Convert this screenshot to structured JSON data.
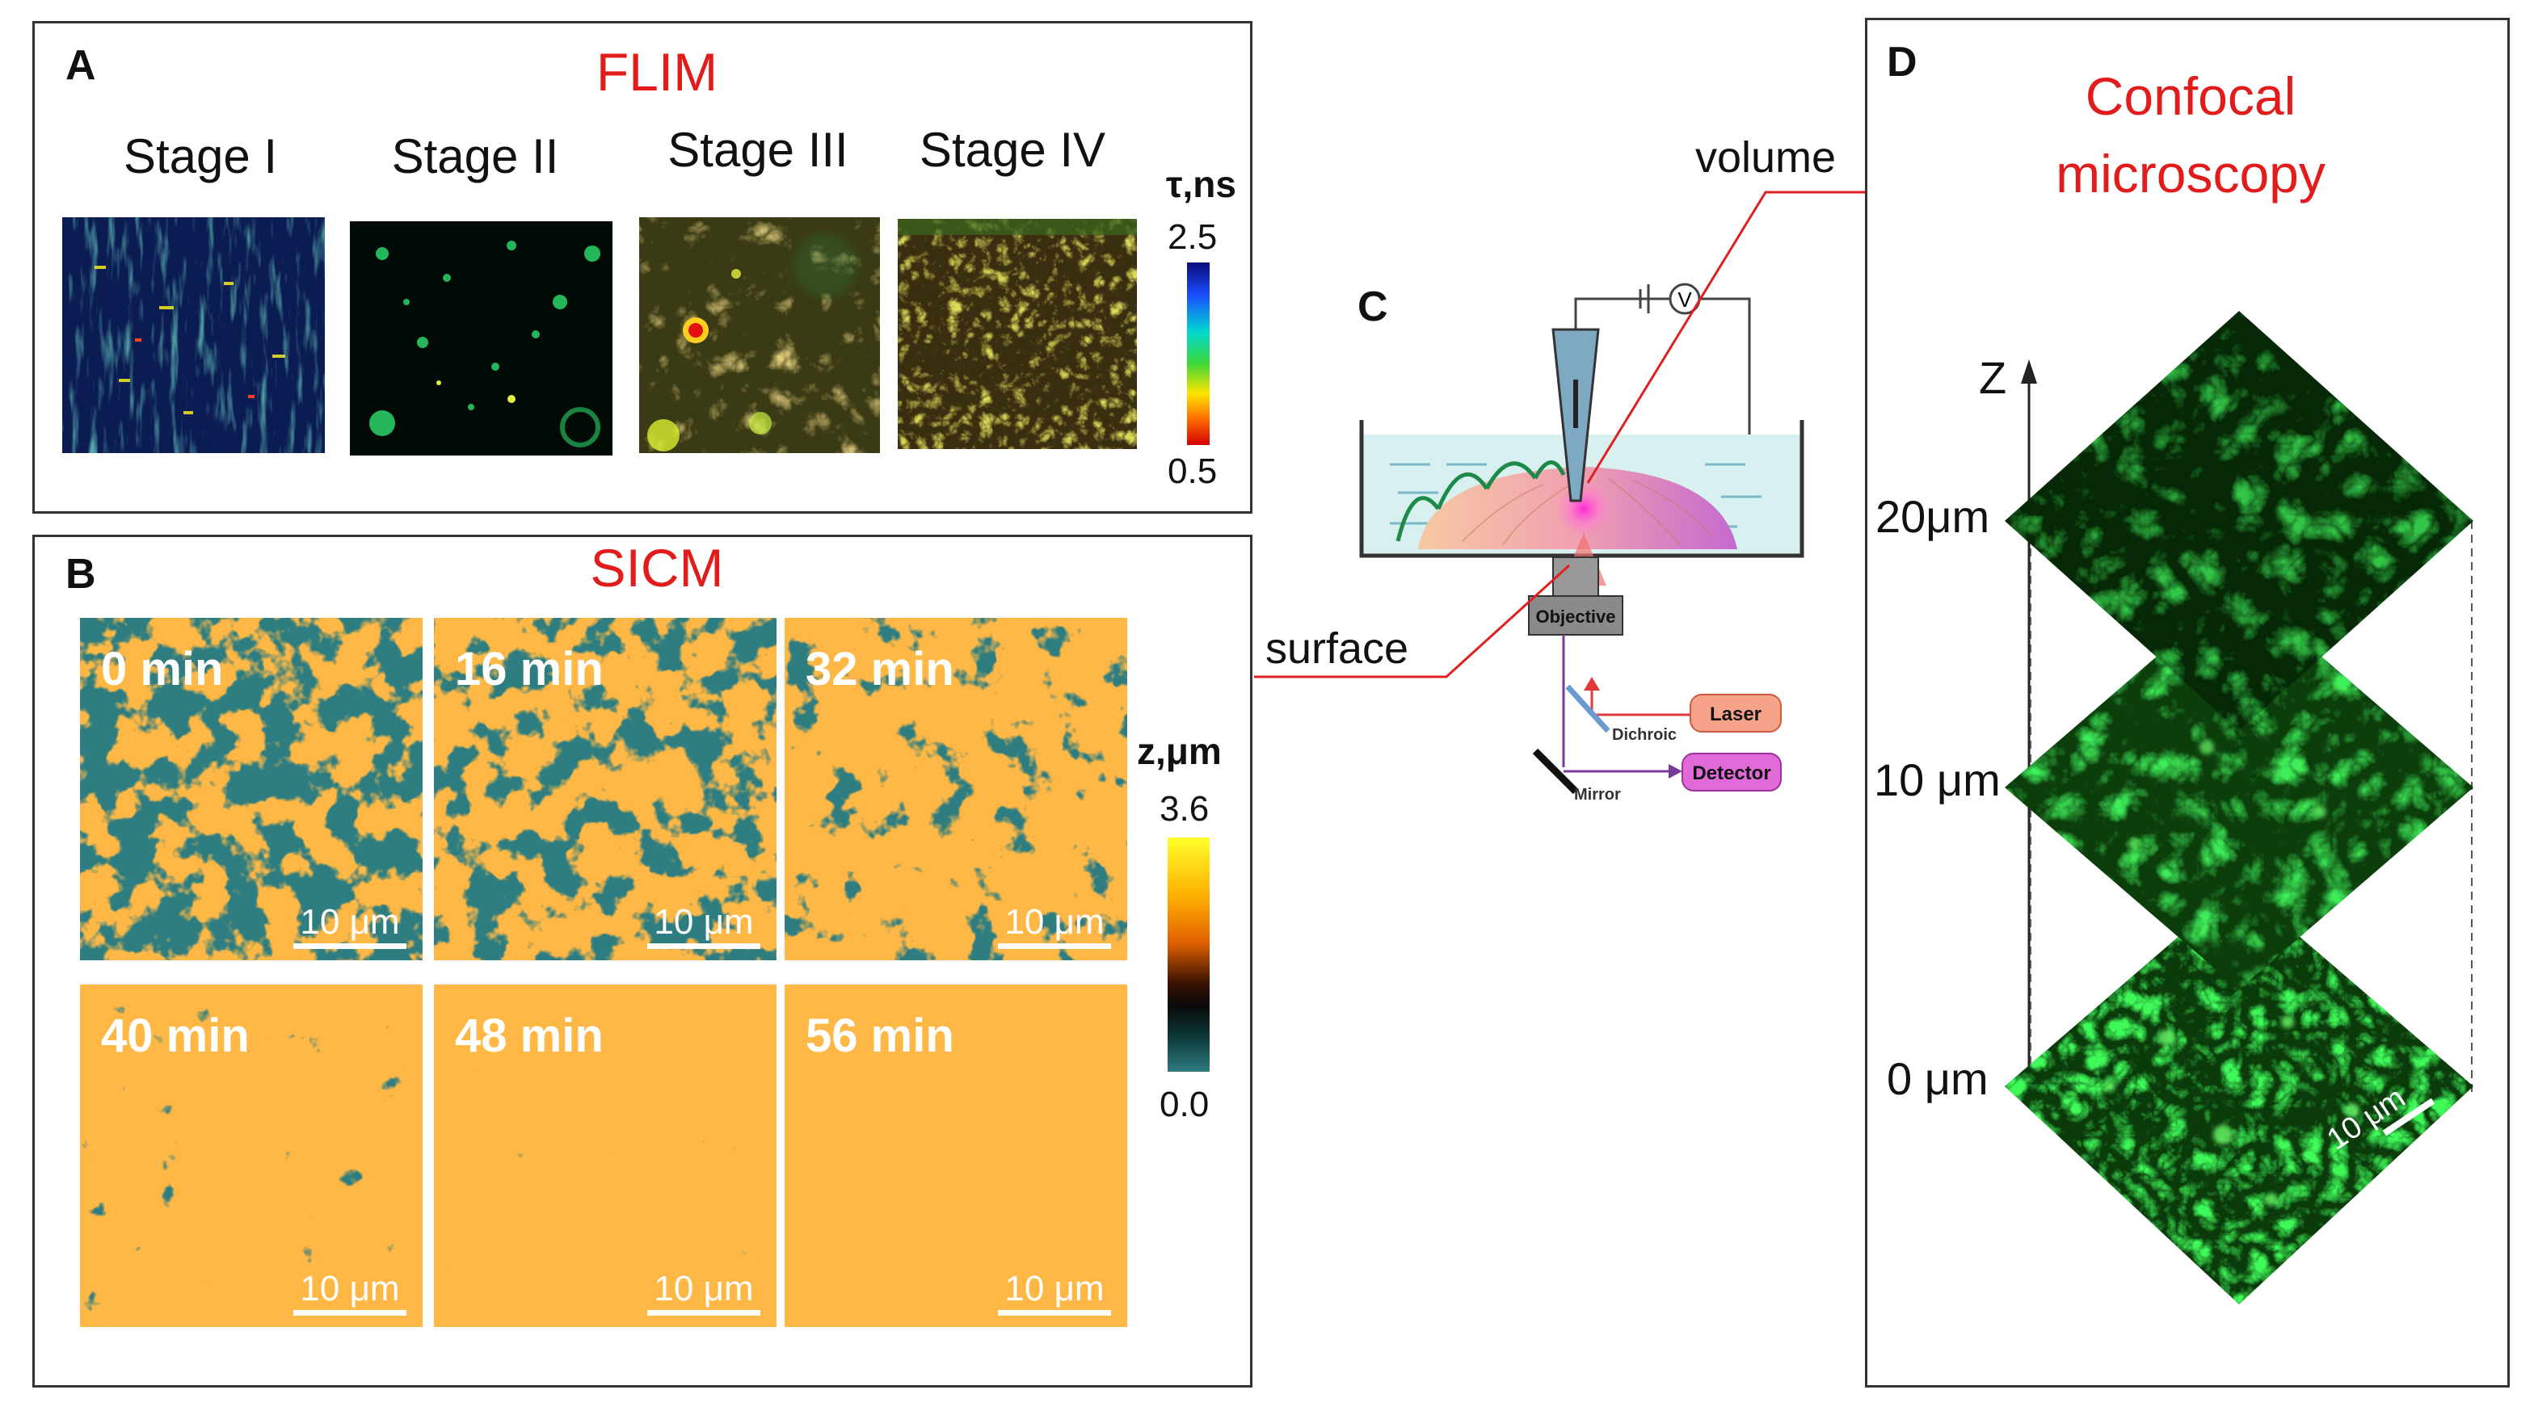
{
  "panel_a": {
    "letter": "A",
    "title": "FLIM",
    "stages": [
      "Stage I",
      "Stage II",
      "Stage III",
      "Stage IV"
    ],
    "colorbar": {
      "title": "τ,ns",
      "max": "2.5",
      "min": "0.5"
    }
  },
  "panel_b": {
    "letter": "B",
    "title": "SICM",
    "frames": [
      {
        "time": "0 min",
        "scale": "10 μm",
        "fill": 0.05
      },
      {
        "time": "16 min",
        "scale": "10 μm",
        "fill": 0.12
      },
      {
        "time": "32 min",
        "scale": "10 μm",
        "fill": 0.25
      },
      {
        "time": "40 min",
        "scale": "10 μm",
        "fill": 0.45
      },
      {
        "time": "48 min",
        "scale": "10 μm",
        "fill": 0.55
      },
      {
        "time": "56 min",
        "scale": "10 μm",
        "fill": 0.65
      }
    ],
    "colorbar": {
      "title": "z,μm",
      "max": "3.6",
      "min": "0.0"
    }
  },
  "panel_c": {
    "letter": "C",
    "labels": {
      "objective": "Objective",
      "laser": "Laser",
      "dichroic": "Dichroic",
      "detector": "Detector",
      "mirror": "Mirror",
      "voltmeter": "V"
    }
  },
  "callouts": {
    "volume": "volume",
    "surface": "surface"
  },
  "panel_d": {
    "letter": "D",
    "title_line1": "Confocal",
    "title_line2": "microscopy",
    "axis": "Z",
    "levels": [
      "20μm",
      "10 μm",
      "0 μm"
    ],
    "scale": "10 μm"
  },
  "colors": {
    "title_red": "#e21b1b",
    "sicm_teal": "#2e7d80",
    "sicm_orange": "#ff7a10",
    "confocal_green": "#1fb52a"
  }
}
